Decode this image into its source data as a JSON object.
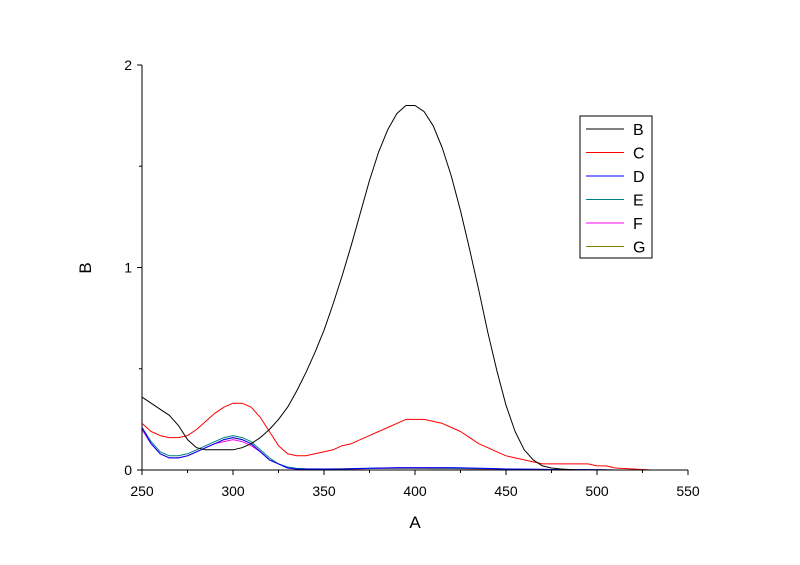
{
  "chart_data": {
    "type": "line",
    "xlabel": "A",
    "ylabel": "B",
    "xlim": [
      250,
      550
    ],
    "ylim": [
      0,
      2
    ],
    "x_ticks": [
      250,
      300,
      350,
      400,
      450,
      500,
      550
    ],
    "y_ticks": [
      0,
      1,
      2
    ],
    "grid": false,
    "legend_position": "top-right",
    "series": [
      {
        "name": "B",
        "color": "#000000",
        "x": [
          250,
          255,
          260,
          265,
          270,
          275,
          280,
          285,
          290,
          295,
          300,
          305,
          310,
          315,
          320,
          325,
          330,
          335,
          340,
          345,
          350,
          355,
          360,
          365,
          370,
          375,
          380,
          385,
          390,
          395,
          400,
          405,
          410,
          415,
          420,
          425,
          430,
          435,
          440,
          445,
          450,
          455,
          460,
          465,
          470,
          475,
          480,
          490,
          500,
          510,
          520,
          530,
          540,
          550
        ],
        "y": [
          0.36,
          0.33,
          0.3,
          0.27,
          0.22,
          0.15,
          0.11,
          0.1,
          0.1,
          0.1,
          0.1,
          0.11,
          0.13,
          0.16,
          0.2,
          0.25,
          0.31,
          0.39,
          0.48,
          0.58,
          0.69,
          0.82,
          0.96,
          1.11,
          1.27,
          1.43,
          1.57,
          1.68,
          1.76,
          1.8,
          1.8,
          1.77,
          1.7,
          1.59,
          1.45,
          1.28,
          1.09,
          0.89,
          0.68,
          0.49,
          0.32,
          0.19,
          0.1,
          0.05,
          0.02,
          0.01,
          0.005,
          0.0,
          0.0,
          0.0,
          0.0,
          0.0,
          0.0,
          0.0
        ]
      },
      {
        "name": "C",
        "color": "#ff0000",
        "x": [
          250,
          255,
          260,
          265,
          270,
          275,
          280,
          285,
          290,
          295,
          300,
          305,
          310,
          315,
          320,
          325,
          330,
          335,
          340,
          345,
          350,
          355,
          360,
          365,
          370,
          375,
          380,
          385,
          390,
          395,
          400,
          405,
          410,
          415,
          420,
          425,
          430,
          435,
          440,
          445,
          450,
          455,
          460,
          465,
          470,
          475,
          480,
          485,
          490,
          495,
          500,
          505,
          510,
          520,
          530,
          540,
          550
        ],
        "y": [
          0.23,
          0.19,
          0.17,
          0.16,
          0.16,
          0.17,
          0.2,
          0.24,
          0.28,
          0.31,
          0.33,
          0.33,
          0.31,
          0.26,
          0.19,
          0.12,
          0.08,
          0.07,
          0.07,
          0.08,
          0.09,
          0.1,
          0.12,
          0.13,
          0.15,
          0.17,
          0.19,
          0.21,
          0.23,
          0.25,
          0.25,
          0.25,
          0.24,
          0.23,
          0.21,
          0.19,
          0.16,
          0.13,
          0.11,
          0.09,
          0.07,
          0.06,
          0.05,
          0.04,
          0.03,
          0.03,
          0.03,
          0.03,
          0.03,
          0.03,
          0.02,
          0.02,
          0.01,
          0.005,
          0.0,
          0.0,
          0.0
        ]
      },
      {
        "name": "D",
        "color": "#0000ff",
        "x": [
          250,
          255,
          260,
          265,
          270,
          275,
          280,
          285,
          290,
          295,
          300,
          305,
          310,
          315,
          320,
          325,
          330,
          335,
          340,
          350,
          360,
          370,
          380,
          390,
          400,
          410,
          420,
          430,
          440,
          450,
          460,
          470,
          480,
          490,
          500,
          510,
          520,
          530,
          540,
          550
        ],
        "y": [
          0.21,
          0.13,
          0.08,
          0.06,
          0.06,
          0.07,
          0.09,
          0.11,
          0.13,
          0.15,
          0.16,
          0.15,
          0.13,
          0.09,
          0.05,
          0.03,
          0.01,
          0.005,
          0.005,
          0.005,
          0.005,
          0.008,
          0.01,
          0.012,
          0.012,
          0.012,
          0.012,
          0.01,
          0.008,
          0.005,
          0.004,
          0.003,
          0.002,
          0.002,
          0.001,
          0.0,
          0.0,
          0.0,
          0.0,
          0.0
        ]
      },
      {
        "name": "E",
        "color": "#008080",
        "x": [
          250,
          255,
          260,
          265,
          270,
          275,
          280,
          285,
          290,
          295,
          300,
          305,
          310,
          315,
          320,
          325,
          330,
          335,
          340,
          350,
          360,
          370,
          380,
          390,
          400,
          410,
          420,
          430,
          440,
          450,
          460,
          470,
          480,
          490,
          500,
          510,
          520,
          530,
          540,
          550
        ],
        "y": [
          0.21,
          0.14,
          0.09,
          0.07,
          0.07,
          0.08,
          0.1,
          0.12,
          0.14,
          0.16,
          0.17,
          0.16,
          0.14,
          0.1,
          0.06,
          0.03,
          0.015,
          0.008,
          0.006,
          0.005,
          0.005,
          0.007,
          0.009,
          0.01,
          0.01,
          0.01,
          0.009,
          0.008,
          0.007,
          0.005,
          0.004,
          0.003,
          0.002,
          0.002,
          0.001,
          0.0,
          0.0,
          0.0,
          0.0,
          0.0
        ]
      },
      {
        "name": "F",
        "color": "#ff00ff",
        "x": [
          250,
          255,
          260,
          265,
          270,
          275,
          280,
          285,
          290,
          295,
          300,
          305,
          310,
          315,
          320,
          325,
          330,
          335,
          340,
          350,
          360,
          370,
          380,
          390,
          400,
          410,
          420,
          430,
          440,
          450,
          460,
          470,
          480,
          490,
          500,
          510,
          520,
          530,
          540,
          550
        ],
        "y": [
          0.2,
          0.13,
          0.08,
          0.06,
          0.06,
          0.07,
          0.09,
          0.11,
          0.13,
          0.14,
          0.15,
          0.14,
          0.12,
          0.09,
          0.05,
          0.03,
          0.01,
          0.005,
          0.004,
          0.004,
          0.004,
          0.006,
          0.008,
          0.009,
          0.009,
          0.009,
          0.008,
          0.007,
          0.006,
          0.005,
          0.004,
          0.003,
          0.002,
          0.001,
          0.001,
          0.0,
          0.0,
          0.0,
          0.0,
          0.0
        ]
      },
      {
        "name": "G",
        "color": "#808000",
        "x": [
          250,
          255,
          260,
          265,
          270,
          275,
          280,
          285,
          290,
          295,
          300,
          305,
          310,
          315,
          320,
          325,
          330,
          335,
          340,
          350,
          360,
          370,
          380,
          390,
          400,
          410,
          420,
          430,
          440,
          450,
          460,
          470,
          480,
          490,
          500,
          510,
          520,
          530,
          540,
          550
        ],
        "y": [
          0.2,
          0.13,
          0.08,
          0.06,
          0.06,
          0.07,
          0.09,
          0.11,
          0.13,
          0.15,
          0.16,
          0.15,
          0.13,
          0.09,
          0.05,
          0.03,
          0.012,
          0.006,
          0.005,
          0.005,
          0.006,
          0.007,
          0.008,
          0.008,
          0.008,
          0.007,
          0.007,
          0.006,
          0.005,
          0.004,
          0.003,
          0.002,
          0.002,
          0.001,
          0.001,
          0.0,
          0.0,
          0.0,
          0.0,
          0.0
        ]
      }
    ]
  }
}
